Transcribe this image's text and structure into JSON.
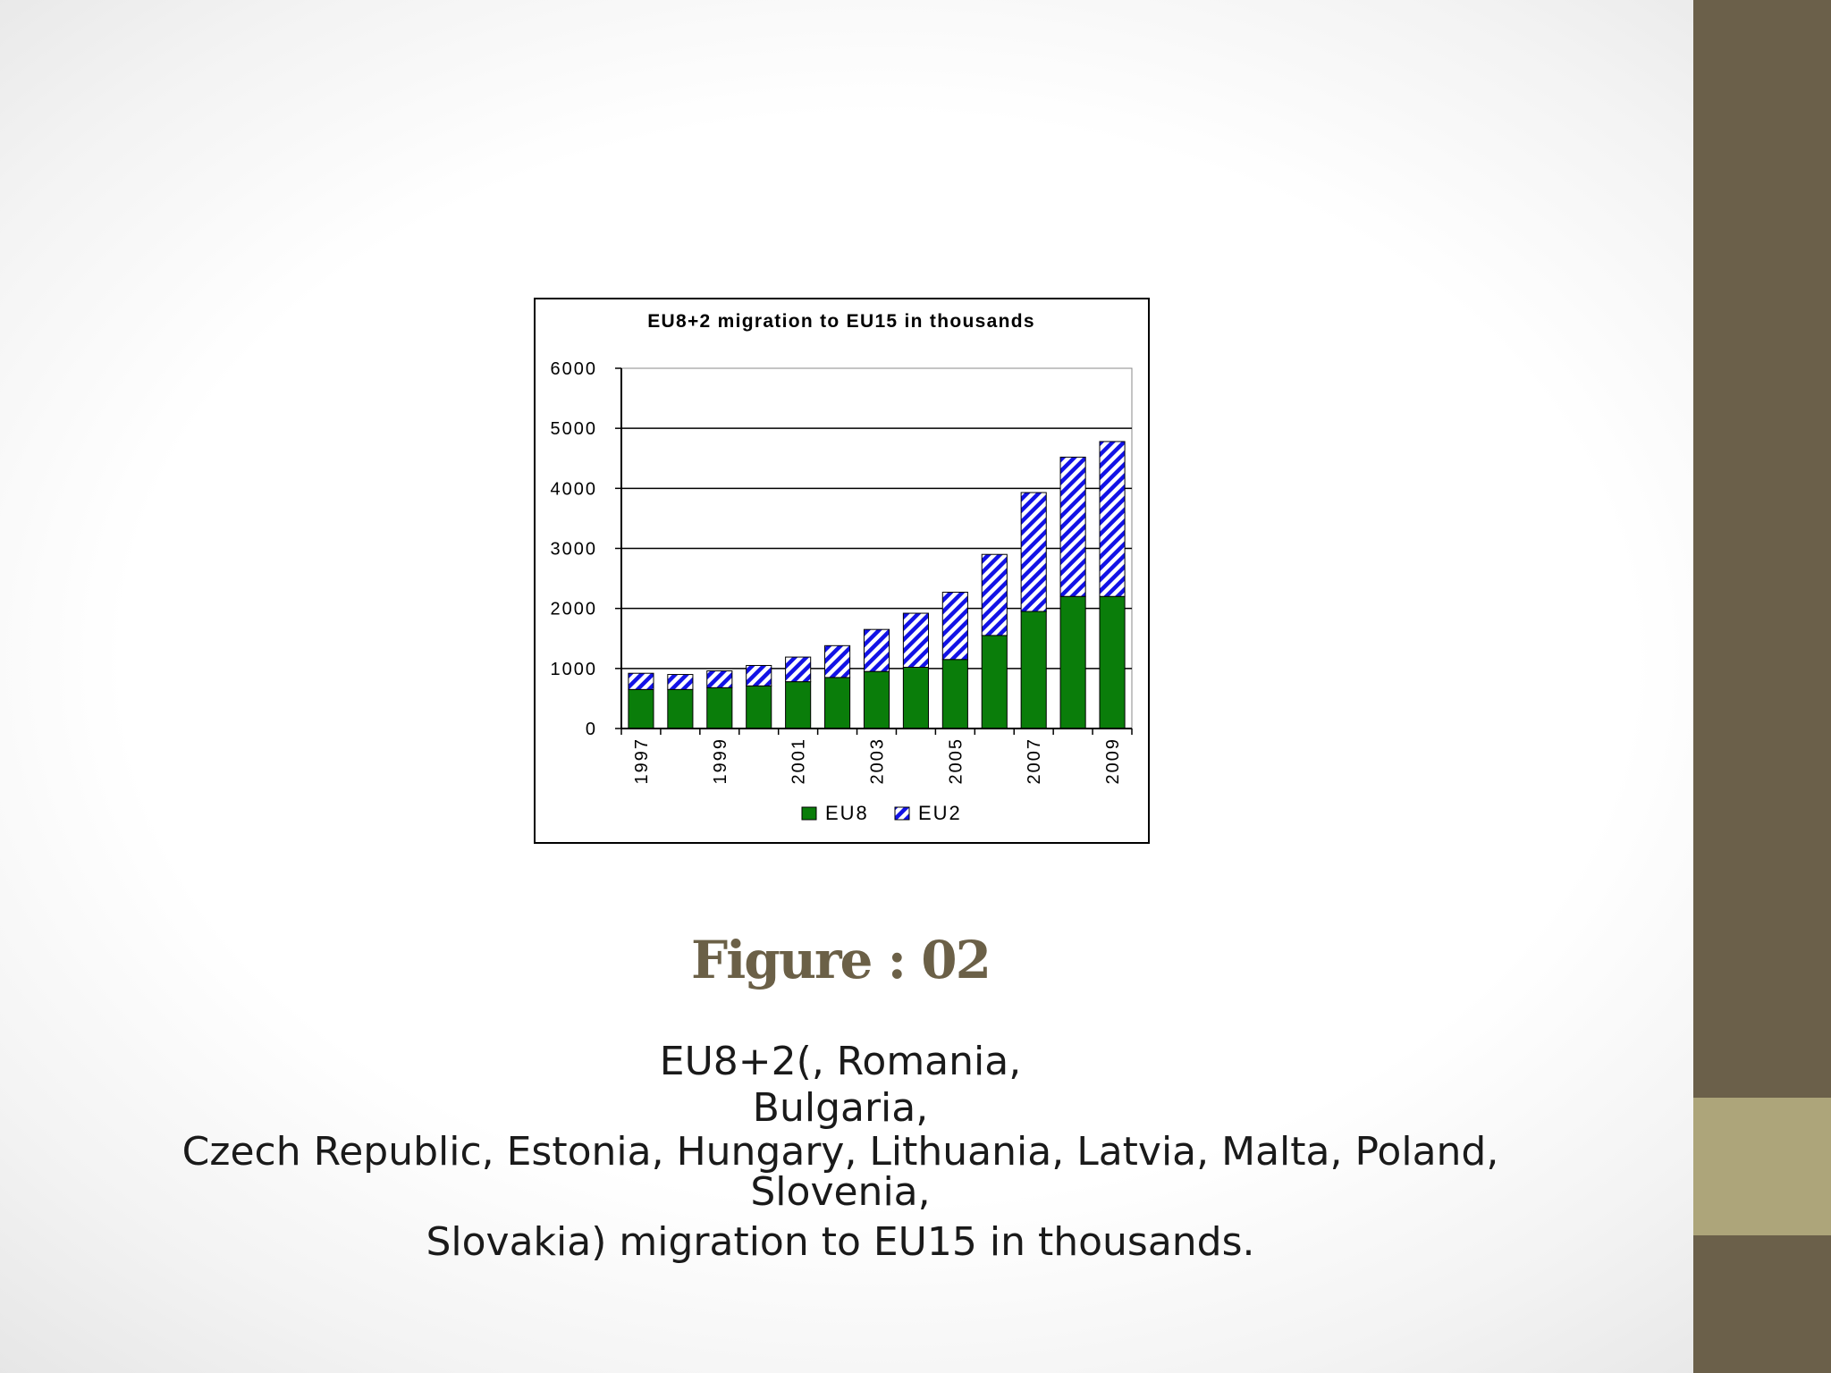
{
  "theme": {
    "side_band_color": "#6b604a",
    "side_accent_color": "#ada57a",
    "eu8_color": "#0a7d0a",
    "eu2_color": "#1212e6",
    "figure_title_color": "#6b6047"
  },
  "chart_data": {
    "type": "bar",
    "stacked": true,
    "title": "EU8+2 migration to EU15 in thousands",
    "xlabel": "",
    "ylabel": "",
    "ylim": [
      0,
      6000
    ],
    "yticks": [
      0,
      1000,
      2000,
      3000,
      4000,
      5000,
      6000
    ],
    "ytick_labels": [
      "0",
      "1000",
      "2000",
      "3000",
      "4000",
      "5000",
      "6000"
    ],
    "grid": true,
    "legend_position": "bottom",
    "categories": [
      "1997",
      "1998",
      "1999",
      "2000",
      "2001",
      "2002",
      "2003",
      "2004",
      "2005",
      "2006",
      "2007",
      "2008",
      "2009"
    ],
    "xtick_labels": [
      "1997",
      "",
      "1999",
      "",
      "2001",
      "",
      "2003",
      "",
      "2005",
      "",
      "2007",
      "",
      "2009"
    ],
    "series": [
      {
        "name": "EU8",
        "pattern": "solid",
        "values": [
          650,
          650,
          680,
          710,
          780,
          850,
          950,
          1020,
          1150,
          1550,
          1950,
          2200,
          2200
        ]
      },
      {
        "name": "EU2",
        "pattern": "diagonal-stripes",
        "values": [
          270,
          250,
          280,
          340,
          410,
          530,
          700,
          900,
          1120,
          1350,
          1980,
          2320,
          2580
        ]
      }
    ]
  },
  "figure": {
    "title": "Figure : 02",
    "caption_lines": [
      "EU8+2(, Romania,",
      "Bulgaria,",
      "Czech Republic, Estonia, Hungary, Lithuania, Latvia, Malta, Poland,",
      "Slovenia,",
      "Slovakia) migration to EU15 in thousands."
    ]
  }
}
